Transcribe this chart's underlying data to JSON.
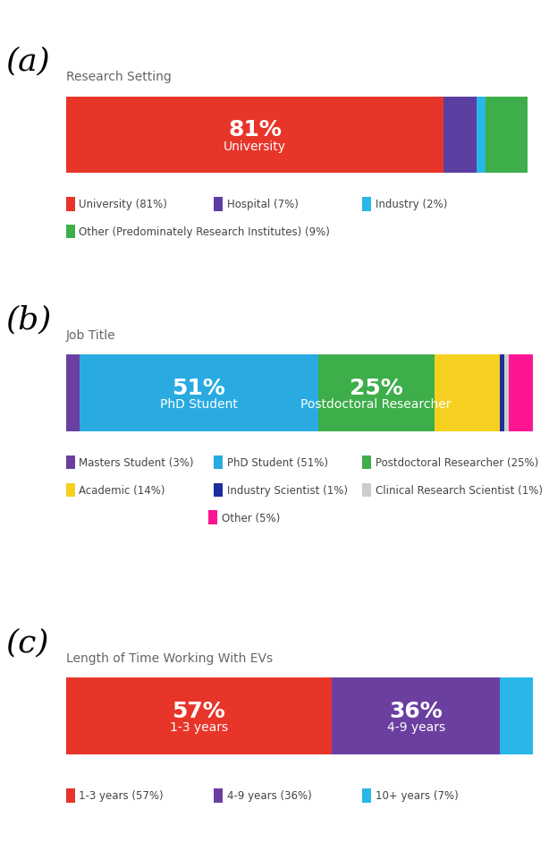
{
  "panel_a": {
    "title": "Research Setting",
    "segments": [
      {
        "label": "University",
        "pct": 81,
        "color": "#E8352A",
        "show_text": true
      },
      {
        "label": "Hospital",
        "pct": 7,
        "color": "#5B3FA0",
        "show_text": false
      },
      {
        "label": "Industry",
        "pct": 2,
        "color": "#29B6E8",
        "show_text": false
      },
      {
        "label": "Other (Predominately Research Institutes)",
        "pct": 9,
        "color": "#3DAE4A",
        "show_text": false
      }
    ],
    "legend": [
      {
        "label": "University (81%)",
        "color": "#E8352A"
      },
      {
        "label": "Hospital (7%)",
        "color": "#5B3FA0"
      },
      {
        "label": "Industry (2%)",
        "color": "#29B6E8"
      },
      {
        "label": "Other (Predominately Research Institutes) (9%)",
        "color": "#3DAE4A"
      }
    ]
  },
  "panel_b": {
    "title": "Job Title",
    "segments": [
      {
        "label": "Masters Student",
        "pct": 3,
        "color": "#6B3FA0",
        "show_text": false
      },
      {
        "label": "PhD Student",
        "pct": 51,
        "color": "#29ABE2",
        "show_text": true
      },
      {
        "label": "Postdoctoral Researcher",
        "pct": 25,
        "color": "#3DAE4A",
        "show_text": true
      },
      {
        "label": "Academic",
        "pct": 14,
        "color": "#F5D020",
        "show_text": false
      },
      {
        "label": "Industry Scientist",
        "pct": 1,
        "color": "#1B2E9B",
        "show_text": false
      },
      {
        "label": "Clinical Research Scientist",
        "pct": 1,
        "color": "#CCCCCC",
        "show_text": false
      },
      {
        "label": "Other",
        "pct": 5,
        "color": "#FF1493",
        "show_text": false
      }
    ],
    "legend": [
      {
        "label": "Masters Student (3%)",
        "color": "#6B3FA0"
      },
      {
        "label": "PhD Student (51%)",
        "color": "#29ABE2"
      },
      {
        "label": "Postdoctoral Researcher (25%)",
        "color": "#3DAE4A"
      },
      {
        "label": "Academic (14%)",
        "color": "#F5D020"
      },
      {
        "label": "Industry Scientist (1%)",
        "color": "#1B2E9B"
      },
      {
        "label": "Clinical Research Scientist (1%)",
        "color": "#CCCCCC"
      },
      {
        "label": "Other (5%)",
        "color": "#FF1493"
      }
    ]
  },
  "panel_c": {
    "title": "Length of Time Working With EVs",
    "segments": [
      {
        "label": "1-3 years",
        "pct": 57,
        "color": "#E8352A",
        "show_text": true
      },
      {
        "label": "4-9 years",
        "pct": 36,
        "color": "#6B3FA0",
        "show_text": true
      },
      {
        "label": "10+ years",
        "pct": 7,
        "color": "#29B6E8",
        "show_text": false
      }
    ],
    "legend": [
      {
        "label": "1-3 years (57%)",
        "color": "#E8352A"
      },
      {
        "label": "4-9 years (36%)",
        "color": "#6B3FA0"
      },
      {
        "label": "10+ years (7%)",
        "color": "#29B6E8"
      }
    ]
  },
  "bg_color": "#FFFFFF",
  "pct_fontsize": 18,
  "sublabel_fontsize": 10,
  "title_fontsize": 10,
  "legend_fontsize": 8.5,
  "panel_label_fontsize": 26
}
